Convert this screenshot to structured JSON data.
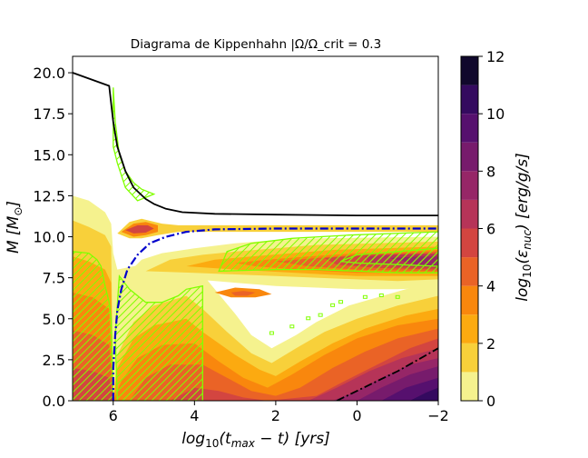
{
  "chart_data": {
    "type": "contour",
    "title": "Diagrama de Kippenhahn |Ω/Ω_crit = 0.3",
    "xlabel": "log10(t_max − t) [yrs]",
    "ylabel": "M [M⊙]",
    "xlim": [
      7,
      -2
    ],
    "ylim": [
      0,
      21
    ],
    "x_ticks": [
      6,
      4,
      2,
      0,
      -2
    ],
    "x_tick_labels": [
      "6",
      "4",
      "2",
      "0",
      "−2"
    ],
    "y_ticks": [
      0,
      2.5,
      5,
      7.5,
      10,
      12.5,
      15,
      17.5,
      20
    ],
    "y_tick_labels": [
      "0.0",
      "2.5",
      "5.0",
      "7.5",
      "10.0",
      "12.5",
      "15.0",
      "17.5",
      "20.0"
    ],
    "colorbar": {
      "label": "log10(ε_nuc) [erg/g/s]",
      "min": 0,
      "max": 12,
      "ticks": [
        0,
        2,
        4,
        6,
        8,
        10,
        12
      ],
      "levels": [
        {
          "from": 0,
          "to": 1,
          "color": "#f5f28e"
        },
        {
          "from": 1,
          "to": 2,
          "color": "#f8d03a"
        },
        {
          "from": 2,
          "to": 3,
          "color": "#fcaa10"
        },
        {
          "from": 3,
          "to": 4,
          "color": "#f9870d"
        },
        {
          "from": 4,
          "to": 5,
          "color": "#ea6326"
        },
        {
          "from": 5,
          "to": 6,
          "color": "#d34540"
        },
        {
          "from": 6,
          "to": 7,
          "color": "#b63458"
        },
        {
          "from": 7,
          "to": 8,
          "color": "#962667"
        },
        {
          "from": 8,
          "to": 9,
          "color": "#771b6c"
        },
        {
          "from": 9,
          "to": 10,
          "color": "#56106e"
        },
        {
          "from": 10,
          "to": 11,
          "color": "#340a5f"
        },
        {
          "from": 11,
          "to": 12,
          "color": "#10082c"
        }
      ]
    },
    "total_mass_line": {
      "color": "#000000",
      "points": [
        [
          7,
          20
        ],
        [
          6.1,
          19.2
        ],
        [
          6.0,
          17
        ],
        [
          5.9,
          15.5
        ],
        [
          5.7,
          14
        ],
        [
          5.5,
          13
        ],
        [
          5.2,
          12.3
        ],
        [
          5.0,
          12
        ],
        [
          4.7,
          11.7
        ],
        [
          4.3,
          11.5
        ],
        [
          3.5,
          11.4
        ],
        [
          2,
          11.35
        ],
        [
          0,
          11.3
        ],
        [
          -2,
          11.3
        ]
      ]
    },
    "he_core_line": {
      "color": "#0000cc",
      "style": "dash-dot",
      "points": [
        [
          6.0,
          0
        ],
        [
          6.0,
          2
        ],
        [
          5.95,
          4
        ],
        [
          5.9,
          5.5
        ],
        [
          5.8,
          6.8
        ],
        [
          5.65,
          8
        ],
        [
          5.4,
          8.9
        ],
        [
          5.1,
          9.6
        ],
        [
          4.7,
          10.0
        ],
        [
          4.2,
          10.3
        ],
        [
          3.5,
          10.45
        ],
        [
          2,
          10.5
        ],
        [
          0,
          10.5
        ],
        [
          -2,
          10.5
        ]
      ]
    },
    "co_core_line": {
      "color": "#000000",
      "style": "dash-dot",
      "points": [
        [
          0.5,
          0
        ],
        [
          0,
          0.6
        ],
        [
          -0.5,
          1.2
        ],
        [
          -1,
          1.8
        ],
        [
          -1.5,
          2.5
        ],
        [
          -2,
          3.2
        ]
      ]
    },
    "convective_zone_color": "#80ff00"
  }
}
